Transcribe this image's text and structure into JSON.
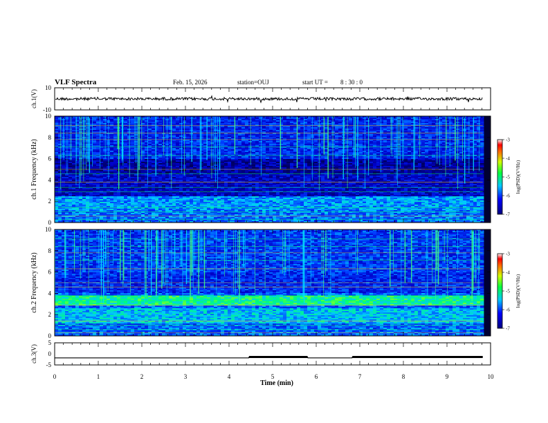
{
  "header": {
    "title": "VLF Spectra",
    "date": "Feb. 15, 2026",
    "station": "station=OUJ",
    "start_label": "start  UT  =",
    "start_time": "8 : 30 : 0"
  },
  "chart_data": [
    {
      "type": "line",
      "name": "ch1-waveform",
      "ylabel": "ch.1(V)",
      "ylim": [
        -10,
        10
      ],
      "yticks": [
        "10",
        "-10"
      ],
      "xlim": [
        0,
        10
      ],
      "note": "broadband VLF waveform, roughly centered near 0 V with small noise"
    },
    {
      "type": "heatmap",
      "name": "ch1-spectrogram",
      "ylabel": "ch.1 Frequency (kHz)",
      "ylim": [
        0,
        10
      ],
      "yticks": [
        "0",
        "2",
        "4",
        "6",
        "8",
        "10"
      ],
      "xlim": [
        0,
        10
      ],
      "colorbar": {
        "label": "log(PSD)(V²/Hz)",
        "range": [
          -7,
          -3
        ],
        "ticks": [
          "-3",
          "-4",
          "-5",
          "-6",
          "-7"
        ]
      }
    },
    {
      "type": "heatmap",
      "name": "ch2-spectrogram",
      "ylabel": "ch.2 Frequency (kHz)",
      "ylim": [
        0,
        10
      ],
      "yticks": [
        "0",
        "2",
        "4",
        "6",
        "8",
        "10"
      ],
      "xlim": [
        0,
        10
      ],
      "colorbar": {
        "label": "log(PSD)(V²/Hz)",
        "range": [
          -7,
          -3
        ],
        "ticks": [
          "-3",
          "-4",
          "-5",
          "-6",
          "-7"
        ]
      }
    },
    {
      "type": "line",
      "name": "ch3-status",
      "ylabel": "ch.3(V)",
      "ylim": [
        -5,
        5
      ],
      "yticks": [
        "5",
        "0",
        "-5"
      ],
      "xlim": [
        0,
        10
      ],
      "x": [
        0,
        4.45,
        4.46,
        5.8,
        5.81,
        6.82,
        6.83,
        9.82
      ],
      "y": [
        -1.8,
        -1.8,
        -1.4,
        -1.4,
        -1.8,
        -1.8,
        -1.4,
        -1.4
      ]
    }
  ],
  "x_axis": {
    "label": "Time  (min)",
    "ticks": [
      "0",
      "1",
      "2",
      "3",
      "4",
      "5",
      "6",
      "7",
      "8",
      "9",
      "10"
    ]
  }
}
